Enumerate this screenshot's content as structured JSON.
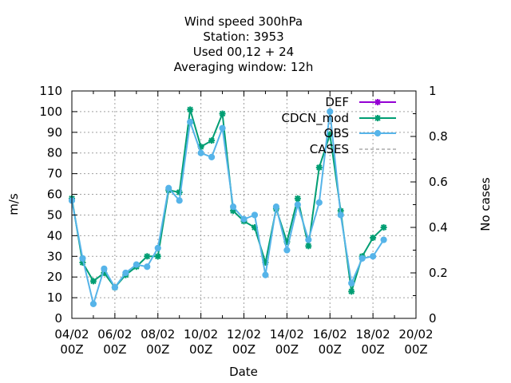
{
  "chart_data": {
    "type": "line",
    "title_lines": [
      "Wind speed 300hPa",
      "Station:      3953",
      "Used  00,12  + 24",
      "Averaging window: 12h"
    ],
    "xlabel": "Date",
    "ylabel": "m/s",
    "y2label": "No cases",
    "x_ticks": [
      {
        "top": "04/02",
        "bottom": "00Z"
      },
      {
        "top": "06/02",
        "bottom": "00Z"
      },
      {
        "top": "08/02",
        "bottom": "00Z"
      },
      {
        "top": "10/02",
        "bottom": "00Z"
      },
      {
        "top": "12/02",
        "bottom": "00Z"
      },
      {
        "top": "14/02",
        "bottom": "00Z"
      },
      {
        "top": "16/02",
        "bottom": "00Z"
      },
      {
        "top": "18/02",
        "bottom": "00Z"
      },
      {
        "top": "20/02",
        "bottom": "00Z"
      }
    ],
    "xlim_days": [
      4,
      20
    ],
    "ylim": [
      0,
      110
    ],
    "yticks": [
      0,
      10,
      20,
      30,
      40,
      50,
      60,
      70,
      80,
      90,
      100,
      110
    ],
    "y2lim": [
      0,
      1
    ],
    "y2ticks": [
      "0",
      "0.2",
      "0.4",
      "0.6",
      "0.8",
      "1"
    ],
    "grid": true,
    "legend_position": "top-right",
    "x_days": [
      4.0,
      4.5,
      5.0,
      5.5,
      6.0,
      6.5,
      7.0,
      7.5,
      8.0,
      8.5,
      9.0,
      9.5,
      10.0,
      10.5,
      11.0,
      11.5,
      12.0,
      12.5,
      13.0,
      13.5,
      14.0,
      14.5,
      15.0,
      15.5,
      16.0,
      16.5,
      17.0,
      17.5,
      18.0,
      18.5
    ],
    "series": [
      {
        "name": "DEF",
        "color": "#9400d3",
        "marker": "star",
        "dashed": false,
        "values": []
      },
      {
        "name": "CDCN_mod",
        "color": "#009e73",
        "marker": "star",
        "dashed": false,
        "values": [
          58,
          27,
          18,
          22,
          15,
          21,
          25,
          30,
          30,
          62,
          61,
          101,
          83,
          86,
          99,
          52,
          47,
          44,
          27,
          53,
          37,
          58,
          35,
          73,
          89,
          52,
          13,
          30,
          39,
          44
        ]
      },
      {
        "name": "OBS",
        "color": "#56b4e9",
        "marker": "circle",
        "dashed": false,
        "values": [
          57,
          29,
          7,
          24,
          15,
          22,
          26,
          25,
          34,
          63,
          57,
          95,
          80,
          78,
          92,
          54,
          48,
          50,
          21,
          54,
          33,
          55,
          38,
          56,
          100,
          50,
          17,
          29,
          30,
          38
        ]
      },
      {
        "name": "CASES",
        "color": "#808080",
        "marker": "none",
        "dashed": true,
        "values": []
      }
    ]
  }
}
